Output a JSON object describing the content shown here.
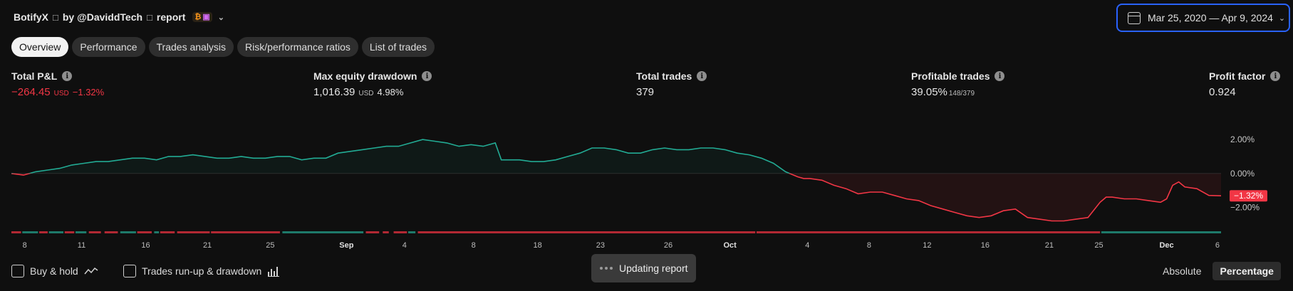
{
  "header": {
    "strategy": "BotifyX",
    "glyph": "□",
    "by": "by @DaviddTech",
    "report": "report",
    "badge_icon_1": "₿",
    "badge_icon_2": "▣"
  },
  "date_range": "Mar 25, 2020 — Apr 9, 2024",
  "tabs": [
    "Overview",
    "Performance",
    "Trades analysis",
    "Risk/performance ratios",
    "List of trades"
  ],
  "metrics": {
    "pnl": {
      "label": "Total P&L",
      "value": "−264.45",
      "unit": "USD",
      "pct": "−1.32%"
    },
    "dd": {
      "label": "Max equity drawdown",
      "value": "1,016.39",
      "unit": "USD",
      "pct": "4.98%"
    },
    "trades": {
      "label": "Total trades",
      "value": "379"
    },
    "profitable": {
      "label": "Profitable trades",
      "value": "39.05%",
      "sub": "148/379"
    },
    "pf": {
      "label": "Profit factor",
      "value": "0.924"
    }
  },
  "colors": {
    "positive": "#22ab94",
    "negative": "#f23645",
    "accent": "#2962ff"
  },
  "chart_data": {
    "type": "area",
    "ylabel": "",
    "y_ticks": [
      "2.00%",
      "0.00%",
      "−2.00%"
    ],
    "y_tick_values": [
      2,
      0,
      -2
    ],
    "ylim": [
      -3.2,
      3.6
    ],
    "last_value_label": "−1.32%",
    "x_tick_labels": [
      "8",
      "11",
      "16",
      "21",
      "25",
      "Sep",
      "4",
      "8",
      "18",
      "23",
      "26",
      "Oct",
      "4",
      "8",
      "12",
      "16",
      "21",
      "25",
      "Dec",
      "6"
    ],
    "x_tick_bold": [
      false,
      false,
      false,
      false,
      false,
      true,
      false,
      false,
      false,
      false,
      false,
      true,
      false,
      false,
      false,
      false,
      false,
      false,
      true,
      false
    ],
    "x_tick_frac": [
      0.011,
      0.058,
      0.111,
      0.162,
      0.214,
      0.277,
      0.325,
      0.382,
      0.435,
      0.487,
      0.543,
      0.594,
      0.658,
      0.709,
      0.757,
      0.805,
      0.858,
      0.899,
      0.955,
      0.997
    ],
    "series": {
      "t": [
        0,
        0.01,
        0.02,
        0.03,
        0.04,
        0.05,
        0.06,
        0.07,
        0.08,
        0.09,
        0.1,
        0.11,
        0.12,
        0.13,
        0.14,
        0.15,
        0.16,
        0.17,
        0.18,
        0.19,
        0.2,
        0.21,
        0.22,
        0.23,
        0.24,
        0.25,
        0.26,
        0.27,
        0.28,
        0.29,
        0.3,
        0.31,
        0.32,
        0.33,
        0.34,
        0.35,
        0.36,
        0.37,
        0.38,
        0.39,
        0.4,
        0.405,
        0.41,
        0.42,
        0.43,
        0.44,
        0.45,
        0.46,
        0.47,
        0.48,
        0.49,
        0.5,
        0.51,
        0.52,
        0.53,
        0.54,
        0.55,
        0.56,
        0.57,
        0.58,
        0.59,
        0.6,
        0.61,
        0.62,
        0.63,
        0.64,
        0.65,
        0.655,
        0.66,
        0.67,
        0.68,
        0.69,
        0.7,
        0.71,
        0.72,
        0.73,
        0.74,
        0.75,
        0.76,
        0.77,
        0.78,
        0.79,
        0.8,
        0.81,
        0.82,
        0.83,
        0.84,
        0.85,
        0.86,
        0.87,
        0.88,
        0.89,
        0.9,
        0.905,
        0.91,
        0.92,
        0.93,
        0.94,
        0.95,
        0.955,
        0.96,
        0.965,
        0.97,
        0.98,
        0.99,
        1.0
      ],
      "v": [
        0.0,
        -0.1,
        0.1,
        0.2,
        0.3,
        0.5,
        0.6,
        0.7,
        0.7,
        0.8,
        0.9,
        0.9,
        0.8,
        1.0,
        1.0,
        1.1,
        1.0,
        0.9,
        0.9,
        1.0,
        0.9,
        0.9,
        1.0,
        1.0,
        0.8,
        0.9,
        0.9,
        1.2,
        1.3,
        1.4,
        1.5,
        1.6,
        1.6,
        1.8,
        2.0,
        1.9,
        1.8,
        1.6,
        1.7,
        1.6,
        1.8,
        0.8,
        0.8,
        0.8,
        0.7,
        0.7,
        0.8,
        1.0,
        1.2,
        1.5,
        1.5,
        1.4,
        1.2,
        1.2,
        1.4,
        1.5,
        1.4,
        1.4,
        1.5,
        1.5,
        1.4,
        1.2,
        1.1,
        0.9,
        0.6,
        0.1,
        -0.2,
        -0.3,
        -0.3,
        -0.4,
        -0.7,
        -0.9,
        -1.2,
        -1.1,
        -1.1,
        -1.3,
        -1.5,
        -1.6,
        -1.9,
        -2.1,
        -2.3,
        -2.5,
        -2.6,
        -2.5,
        -2.2,
        -2.1,
        -2.6,
        -2.7,
        -2.8,
        -2.8,
        -2.7,
        -2.6,
        -1.7,
        -1.4,
        -1.4,
        -1.5,
        -1.5,
        -1.6,
        -1.7,
        -1.5,
        -0.7,
        -0.5,
        -0.8,
        -0.9,
        -1.3,
        -1.32
      ]
    },
    "trade_marks": [
      {
        "from": 0.0,
        "to": 0.008,
        "s": "n"
      },
      {
        "from": 0.009,
        "to": 0.022,
        "s": "p"
      },
      {
        "from": 0.023,
        "to": 0.03,
        "s": "n"
      },
      {
        "from": 0.031,
        "to": 0.043,
        "s": "p"
      },
      {
        "from": 0.044,
        "to": 0.052,
        "s": "n"
      },
      {
        "from": 0.053,
        "to": 0.062,
        "s": "p"
      },
      {
        "from": 0.064,
        "to": 0.074,
        "s": "n"
      },
      {
        "from": 0.077,
        "to": 0.088,
        "s": "n"
      },
      {
        "from": 0.09,
        "to": 0.103,
        "s": "p"
      },
      {
        "from": 0.104,
        "to": 0.116,
        "s": "n"
      },
      {
        "from": 0.118,
        "to": 0.122,
        "s": "p"
      },
      {
        "from": 0.123,
        "to": 0.135,
        "s": "n"
      },
      {
        "from": 0.137,
        "to": 0.164,
        "s": "n"
      },
      {
        "from": 0.165,
        "to": 0.222,
        "s": "n"
      },
      {
        "from": 0.224,
        "to": 0.291,
        "s": "p"
      },
      {
        "from": 0.293,
        "to": 0.304,
        "s": "n"
      },
      {
        "from": 0.307,
        "to": 0.312,
        "s": "n"
      },
      {
        "from": 0.316,
        "to": 0.327,
        "s": "n"
      },
      {
        "from": 0.328,
        "to": 0.334,
        "s": "p"
      },
      {
        "from": 0.336,
        "to": 0.615,
        "s": "n"
      },
      {
        "from": 0.616,
        "to": 0.9,
        "s": "n"
      },
      {
        "from": 0.901,
        "to": 1.0,
        "s": "p"
      }
    ]
  },
  "bottom": {
    "buy_hold": "Buy & hold",
    "runup": "Trades run-up & drawdown",
    "updating": "Updating report",
    "mode_absolute": "Absolute",
    "mode_percentage": "Percentage"
  }
}
